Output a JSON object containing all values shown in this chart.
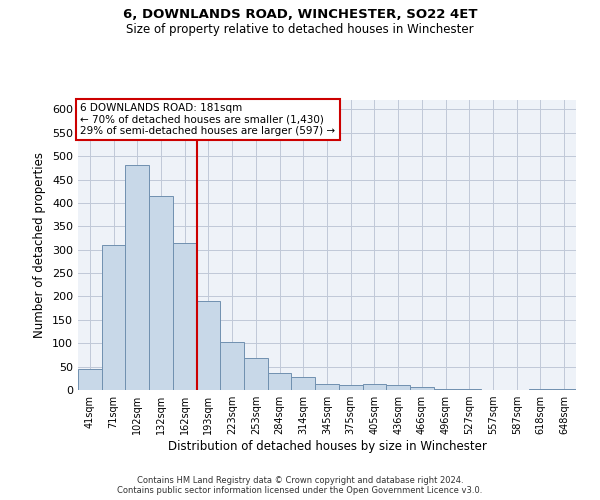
{
  "title": "6, DOWNLANDS ROAD, WINCHESTER, SO22 4ET",
  "subtitle": "Size of property relative to detached houses in Winchester",
  "xlabel": "Distribution of detached houses by size in Winchester",
  "ylabel": "Number of detached properties",
  "categories": [
    "41sqm",
    "71sqm",
    "102sqm",
    "132sqm",
    "162sqm",
    "193sqm",
    "223sqm",
    "253sqm",
    "284sqm",
    "314sqm",
    "345sqm",
    "375sqm",
    "405sqm",
    "436sqm",
    "466sqm",
    "496sqm",
    "527sqm",
    "557sqm",
    "587sqm",
    "618sqm",
    "648sqm"
  ],
  "values": [
    45,
    310,
    480,
    415,
    315,
    190,
    103,
    68,
    37,
    28,
    13,
    10,
    13,
    10,
    6,
    3,
    2,
    0,
    0,
    3,
    3
  ],
  "bar_color": "#c8d8e8",
  "bar_edge_color": "#7090b0",
  "vline_x": 4.5,
  "vline_color": "#cc0000",
  "annotation_title": "6 DOWNLANDS ROAD: 181sqm",
  "annotation_line1": "← 70% of detached houses are smaller (1,430)",
  "annotation_line2": "29% of semi-detached houses are larger (597) →",
  "annotation_box_color": "#cc0000",
  "ylim": [
    0,
    620
  ],
  "yticks": [
    0,
    50,
    100,
    150,
    200,
    250,
    300,
    350,
    400,
    450,
    500,
    550,
    600
  ],
  "grid_color": "#c0c8d8",
  "background_color": "#eef2f8",
  "footer_line1": "Contains HM Land Registry data © Crown copyright and database right 2024.",
  "footer_line2": "Contains public sector information licensed under the Open Government Licence v3.0."
}
